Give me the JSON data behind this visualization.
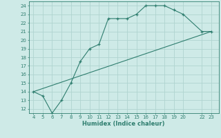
{
  "curve_x": [
    4,
    5,
    6,
    7,
    8,
    9,
    10,
    11,
    12,
    13,
    14,
    15,
    16,
    17,
    18,
    19,
    20,
    22,
    23
  ],
  "curve_y": [
    14,
    13.5,
    11.5,
    13,
    15,
    17.5,
    19,
    19.5,
    22.5,
    22.5,
    22.5,
    23,
    24,
    24,
    24,
    23.5,
    23,
    21,
    21
  ],
  "line_x": [
    4,
    23
  ],
  "line_y": [
    14,
    21
  ],
  "color": "#2e7d6e",
  "bg_color": "#ceeae7",
  "grid_color": "#afd4d0",
  "xlabel": "Humidex (Indice chaleur)",
  "xlim": [
    3.5,
    23.8
  ],
  "ylim": [
    11.5,
    24.5
  ],
  "xticks": [
    4,
    5,
    6,
    7,
    8,
    9,
    10,
    11,
    12,
    13,
    14,
    15,
    16,
    17,
    18,
    19,
    20,
    22,
    23
  ],
  "yticks": [
    12,
    13,
    14,
    15,
    16,
    17,
    18,
    19,
    20,
    21,
    22,
    23,
    24
  ],
  "tick_fontsize": 5.0,
  "xlabel_fontsize": 6.0
}
